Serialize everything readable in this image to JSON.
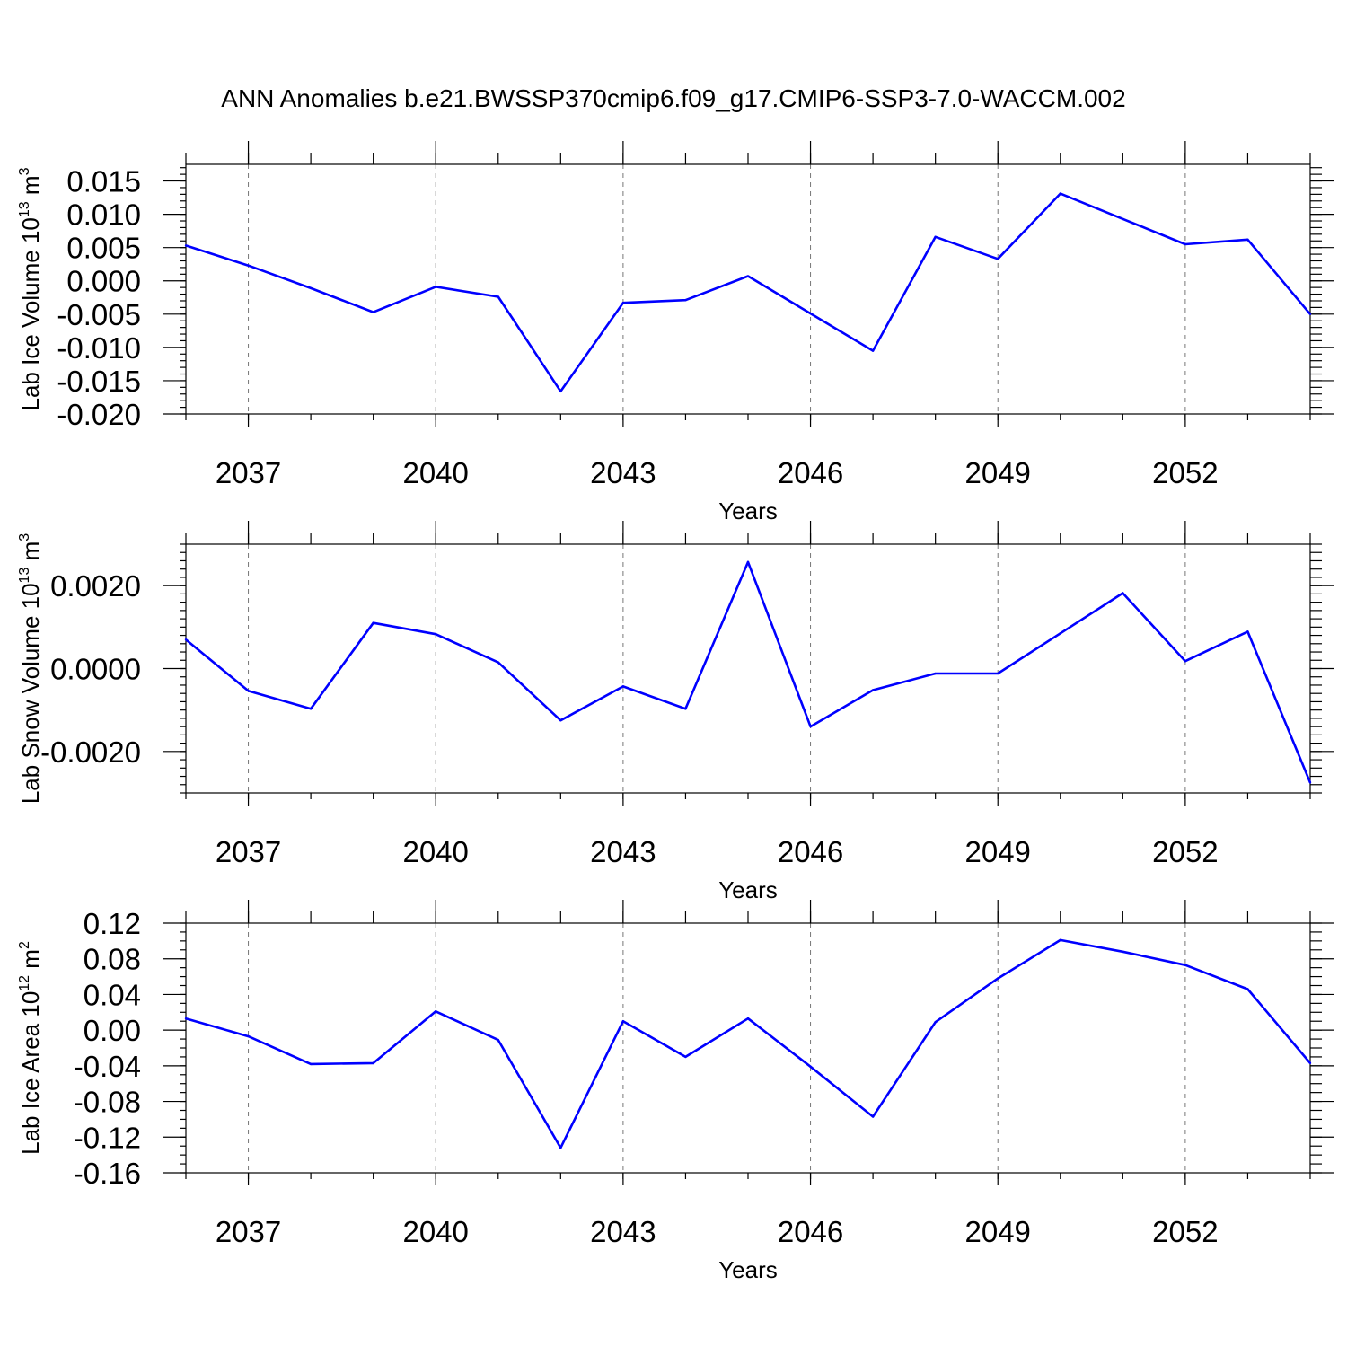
{
  "title": "ANN Anomalies b.e21.BWSSP370cmip6.f09_g17.CMIP6-SSP3-7.0-WACCM.002",
  "colors": {
    "series": "#0000ff",
    "axes": "#000000",
    "grid": "#777777"
  },
  "chart_data": [
    {
      "type": "line",
      "xlabel": "Years",
      "ylabel": {
        "text": "Lab Ice Volume 10",
        "sup": "13",
        "unit": " m",
        "unit_sup": "3"
      },
      "xlim": [
        2036,
        2054
      ],
      "ylim": [
        -0.02,
        0.0175
      ],
      "x_ticks": [
        "2037",
        "2040",
        "2043",
        "2046",
        "2049",
        "2052"
      ],
      "y_ticks": [
        "0.015",
        "0.010",
        "0.005",
        "0.000",
        "-0.005",
        "-0.010",
        "-0.015",
        "-0.020"
      ],
      "x_grid": "dashed at major ticks",
      "x": [
        2036,
        2037,
        2038,
        2039,
        2040,
        2041,
        2042,
        2043,
        2044,
        2045,
        2046,
        2047,
        2048,
        2049,
        2050,
        2051,
        2052,
        2053,
        2054
      ],
      "series": [
        {
          "values": [
            0.0053,
            0.0023,
            -0.0011,
            -0.0047,
            -0.0009,
            -0.0024,
            -0.0166,
            -0.0033,
            -0.0029,
            0.0007,
            -0.0049,
            -0.0105,
            0.0066,
            0.0033,
            0.0131,
            0.0093,
            0.0055,
            0.0062,
            -0.005
          ]
        }
      ]
    },
    {
      "type": "line",
      "xlabel": "Years",
      "ylabel": {
        "text": "Lab Snow Volume 10",
        "sup": "13",
        "unit": " m",
        "unit_sup": "3"
      },
      "xlim": [
        2036,
        2054
      ],
      "ylim": [
        -0.003,
        0.003
      ],
      "x_ticks": [
        "2037",
        "2040",
        "2043",
        "2046",
        "2049",
        "2052"
      ],
      "y_ticks": [
        "0.0020",
        "0.0000",
        "-0.0020"
      ],
      "x_grid": "dashed at major ticks",
      "x": [
        2036,
        2037,
        2038,
        2039,
        2040,
        2041,
        2042,
        2043,
        2044,
        2045,
        2046,
        2047,
        2048,
        2049,
        2050,
        2051,
        2052,
        2053,
        2054
      ],
      "series": [
        {
          "values": [
            0.0007,
            -0.00054,
            -0.00097,
            0.0011,
            0.00083,
            0.00015,
            -0.00125,
            -0.00043,
            -0.00097,
            0.00257,
            -0.0014,
            -0.00052,
            -0.00012,
            -0.00012,
            0.00085,
            0.00182,
            0.00018,
            0.00089,
            -0.00275
          ]
        }
      ]
    },
    {
      "type": "line",
      "xlabel": "Years",
      "ylabel": {
        "text": "Lab Ice Area 10",
        "sup": "12",
        "unit": " m",
        "unit_sup": "2"
      },
      "xlim": [
        2036,
        2054
      ],
      "ylim": [
        -0.16,
        0.12
      ],
      "x_ticks": [
        "2037",
        "2040",
        "2043",
        "2046",
        "2049",
        "2052"
      ],
      "y_ticks": [
        "0.12",
        "0.08",
        "0.04",
        "0.00",
        "-0.04",
        "-0.08",
        "-0.12",
        "-0.16"
      ],
      "x_grid": "dashed at major ticks",
      "x": [
        2036,
        2037,
        2038,
        2039,
        2040,
        2041,
        2042,
        2043,
        2044,
        2045,
        2046,
        2047,
        2048,
        2049,
        2050,
        2051,
        2052,
        2053,
        2054
      ],
      "series": [
        {
          "values": [
            0.013,
            -0.007,
            -0.038,
            -0.037,
            0.021,
            -0.011,
            -0.132,
            0.01,
            -0.03,
            0.013,
            -0.041,
            -0.097,
            0.009,
            0.058,
            0.101,
            0.088,
            0.073,
            0.046,
            -0.037
          ]
        }
      ]
    }
  ]
}
